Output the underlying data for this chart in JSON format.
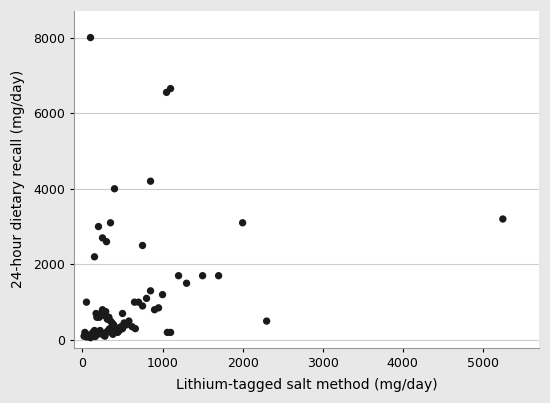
{
  "x": [
    100,
    200,
    50,
    150,
    250,
    300,
    350,
    400,
    500,
    650,
    750,
    850,
    1050,
    1100,
    1200,
    1300,
    1500,
    1700,
    2000,
    2300,
    5250,
    20,
    30,
    40,
    50,
    60,
    70,
    80,
    90,
    100,
    110,
    120,
    130,
    140,
    150,
    160,
    170,
    180,
    190,
    200,
    210,
    220,
    230,
    240,
    250,
    260,
    270,
    280,
    290,
    300,
    310,
    320,
    330,
    340,
    350,
    360,
    370,
    380,
    390,
    400,
    420,
    440,
    460,
    480,
    500,
    520,
    550,
    580,
    620,
    660,
    700,
    750,
    800,
    850,
    900,
    950,
    1000,
    1060,
    1100
  ],
  "y": [
    8000,
    3000,
    1000,
    2200,
    2700,
    2600,
    3100,
    4000,
    700,
    1000,
    2500,
    4200,
    6550,
    6650,
    1700,
    1500,
    1700,
    1700,
    3100,
    500,
    3200,
    100,
    200,
    150,
    80,
    100,
    130,
    120,
    90,
    60,
    100,
    150,
    200,
    130,
    250,
    90,
    700,
    600,
    150,
    200,
    600,
    250,
    700,
    180,
    800,
    130,
    650,
    100,
    750,
    200,
    550,
    250,
    600,
    300,
    500,
    200,
    450,
    150,
    400,
    350,
    280,
    200,
    250,
    350,
    300,
    450,
    400,
    500,
    350,
    300,
    1000,
    900,
    1100,
    1300,
    800,
    850,
    1200,
    200,
    200
  ],
  "xlabel": "Lithium-tagged salt method (mg/day)",
  "ylabel": "24-hour dietary recall (mg/day)",
  "xlim": [
    -100,
    5700
  ],
  "ylim": [
    -200,
    8700
  ],
  "xticks": [
    0,
    1000,
    2000,
    3000,
    4000,
    5000
  ],
  "yticks": [
    0,
    2000,
    4000,
    6000,
    8000
  ],
  "background_color": "#e8e8e8",
  "plot_bg_color": "#ffffff",
  "marker_color": "#1a1a1a",
  "marker_size": 28,
  "grid_color": "#cccccc"
}
